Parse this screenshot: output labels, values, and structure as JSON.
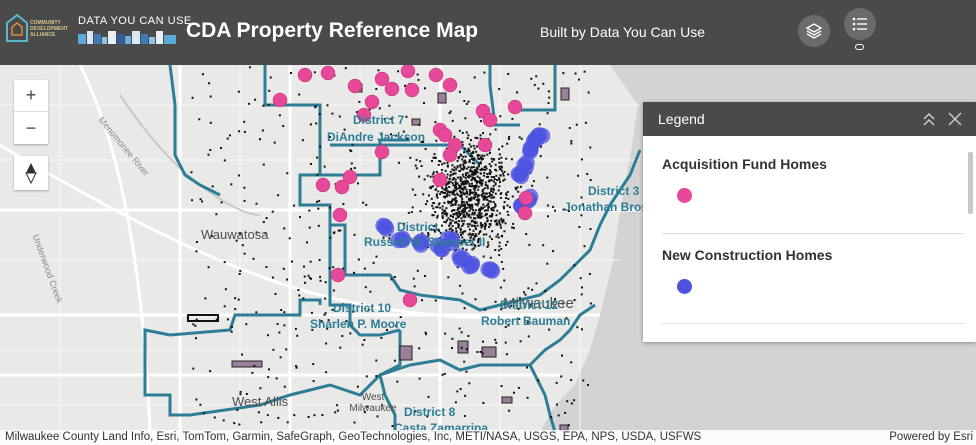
{
  "header": {
    "org_logo_text": "COMMUNITY DEVELOPMENT ALLIANCE",
    "brand_title": "DATA YOU CAN USE",
    "app_title": "CDA Property Reference Map",
    "subtitle": "Built by Data You Can Use",
    "colors": {
      "bar": "#4a4a4a",
      "button": "#6b6b6b"
    }
  },
  "toolbar": {
    "layers_icon": "layers-icon",
    "legend_icon": "legend-list-icon"
  },
  "map_controls": {
    "zoom_in": "+",
    "zoom_out": "−",
    "compass_icon": "compass-icon"
  },
  "map": {
    "place_labels": [
      "Wauwatosa",
      "West Allis",
      "West Milwaukee",
      "Milwaukee",
      "Menomonee River",
      "Underwood Creek"
    ],
    "district_labels": [
      {
        "district": "District 7",
        "member": "DiAndre Jackson"
      },
      {
        "district": "District 3",
        "member": "Jonathan Brostoff"
      },
      {
        "district": "District",
        "member": "Russell W. Stamper II"
      },
      {
        "district": "District 10",
        "member": "Sharlen P. Moore"
      },
      {
        "district": "District 12",
        "member": "Robert Bauman"
      },
      {
        "district": "District 8",
        "member": "Casta Zamarripa"
      }
    ],
    "colors": {
      "boundary": "#2e7d96",
      "acquisition": "#e8489a",
      "construction": "#4b53e0",
      "parcels": "#111111"
    }
  },
  "legend": {
    "title": "Legend",
    "collapse_icon": "chevrons-up-icon",
    "close_icon": "close-icon",
    "sections": [
      {
        "label": "Acquisition Fund Homes",
        "color": "#e8489a"
      },
      {
        "label": "New Construction Homes",
        "color": "#4b53e0"
      }
    ]
  },
  "attribution": {
    "sources": "Milwaukee County Land Info, Esri, TomTom, Garmin, SafeGraph, GeoTechnologies, Inc, METI/NASA, USGS, EPA, NPS, USDA, USFWS",
    "powered_by": "Powered by Esri"
  }
}
